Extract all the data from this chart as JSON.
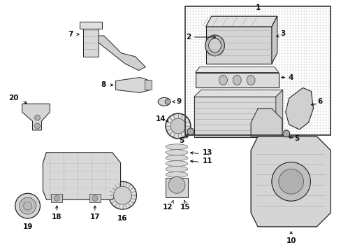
{
  "background_color": "#ffffff",
  "figsize": [
    4.89,
    3.6
  ],
  "dpi": 100,
  "label_fontsize": 7.5,
  "label_fontweight": "bold",
  "label_color": "#111111",
  "arrow_color": "#111111",
  "stipple_color": "#d8d8d8",
  "line_color": "#222222",
  "part_fill": "#e8e8e8",
  "part_edge": "#222222"
}
